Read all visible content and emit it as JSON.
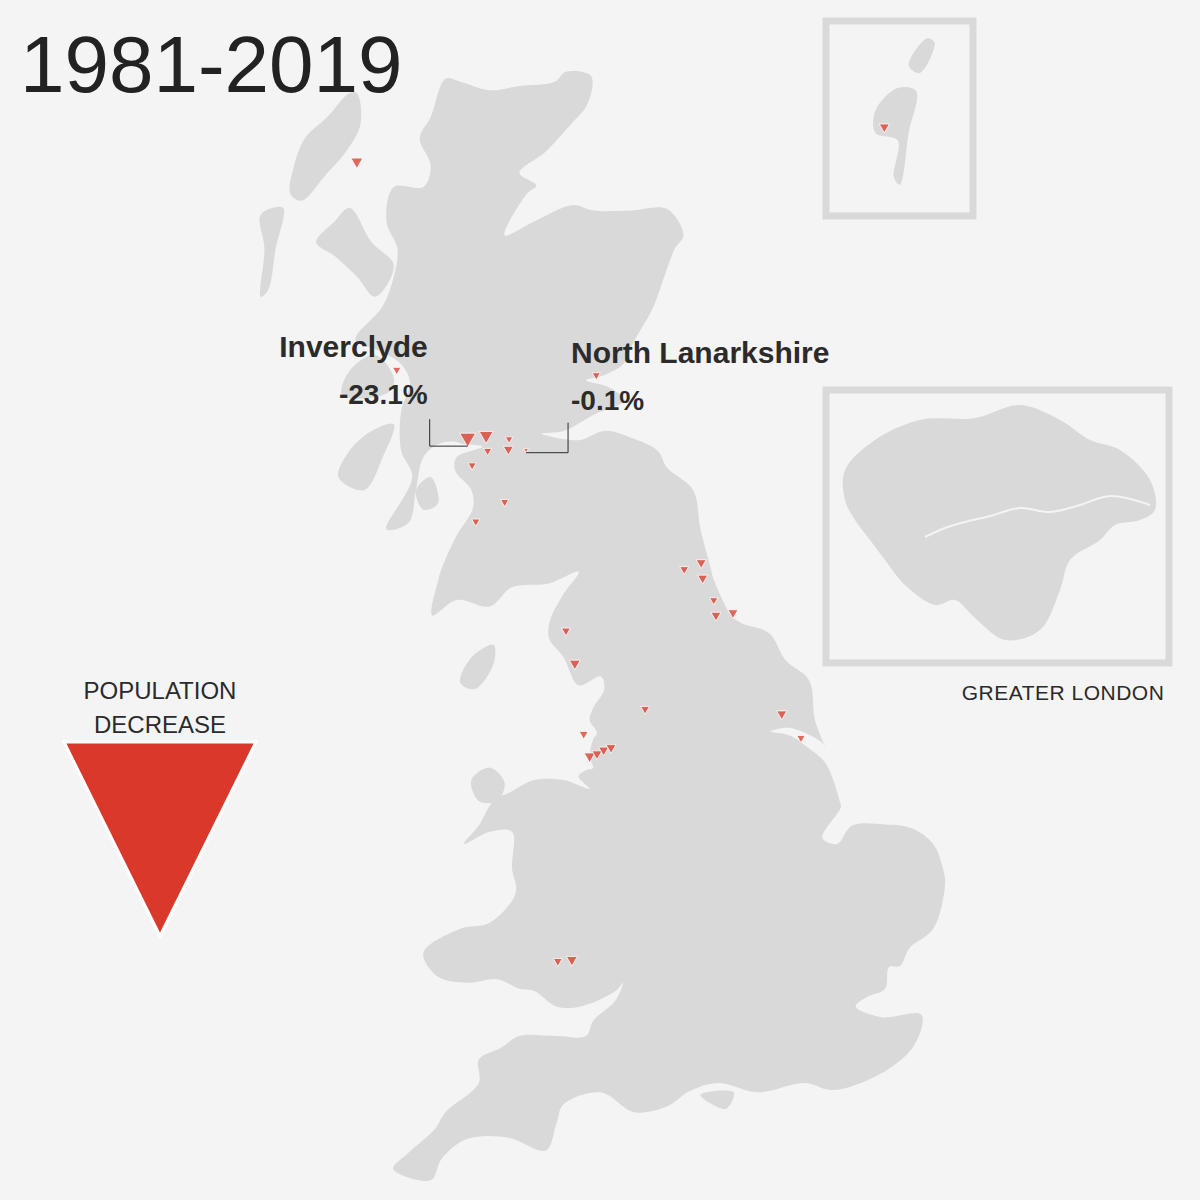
{
  "chart_data": {
    "type": "map",
    "title": "1981-2019",
    "legend_title": [
      "POPULATION",
      "DECREASE"
    ],
    "inset_title": "GREATER LONDON",
    "color": "#d9382a",
    "points": [
      {
        "lon": -6.2,
        "lat": 58.02,
        "value": -10
      },
      {
        "lon": -1.48,
        "lat": 60.23,
        "value": -6
      },
      {
        "lon": -5.66,
        "lat": 56.5,
        "value": -3
      },
      {
        "lon": -2.96,
        "lat": 56.46,
        "value": -3
      },
      {
        "lon": -4.7,
        "lat": 55.98,
        "value": -23.1,
        "label": "Inverclyde",
        "value_label": "-23.1%"
      },
      {
        "lon": -4.45,
        "lat": 56.0,
        "value": -16
      },
      {
        "lon": -4.43,
        "lat": 55.89,
        "value": -3
      },
      {
        "lon": -4.14,
        "lat": 55.98,
        "value": -2
      },
      {
        "lon": -4.15,
        "lat": 55.9,
        "value": -6
      },
      {
        "lon": -3.91,
        "lat": 55.9,
        "value": -0.1,
        "label": "North Lanarkshire",
        "value_label": "-0.1%"
      },
      {
        "lon": -4.64,
        "lat": 55.78,
        "value": -3
      },
      {
        "lon": -4.2,
        "lat": 55.5,
        "value": -3
      },
      {
        "lon": -4.59,
        "lat": 55.35,
        "value": -3
      },
      {
        "lon": -1.77,
        "lat": 54.98,
        "value": -4
      },
      {
        "lon": -1.54,
        "lat": 55.03,
        "value": -6
      },
      {
        "lon": -1.52,
        "lat": 54.91,
        "value": -6
      },
      {
        "lon": -1.37,
        "lat": 54.74,
        "value": -3
      },
      {
        "lon": -1.34,
        "lat": 54.62,
        "value": -6
      },
      {
        "lon": -1.11,
        "lat": 54.64,
        "value": -6
      },
      {
        "lon": -3.37,
        "lat": 54.5,
        "value": -4
      },
      {
        "lon": -3.25,
        "lat": 54.24,
        "value": -8
      },
      {
        "lon": -2.3,
        "lat": 53.88,
        "value": -4
      },
      {
        "lon": -3.13,
        "lat": 53.68,
        "value": -4
      },
      {
        "lon": -3.05,
        "lat": 53.5,
        "value": -8
      },
      {
        "lon": -2.95,
        "lat": 53.52,
        "value": -6
      },
      {
        "lon": -2.86,
        "lat": 53.55,
        "value": -6
      },
      {
        "lon": -2.76,
        "lat": 53.57,
        "value": -6
      },
      {
        "lon": -0.45,
        "lat": 53.84,
        "value": -6
      },
      {
        "lon": -0.19,
        "lat": 53.65,
        "value": -3
      },
      {
        "lon": -3.48,
        "lat": 51.82,
        "value": -4
      },
      {
        "lon": -3.29,
        "lat": 51.83,
        "value": -8
      }
    ]
  }
}
